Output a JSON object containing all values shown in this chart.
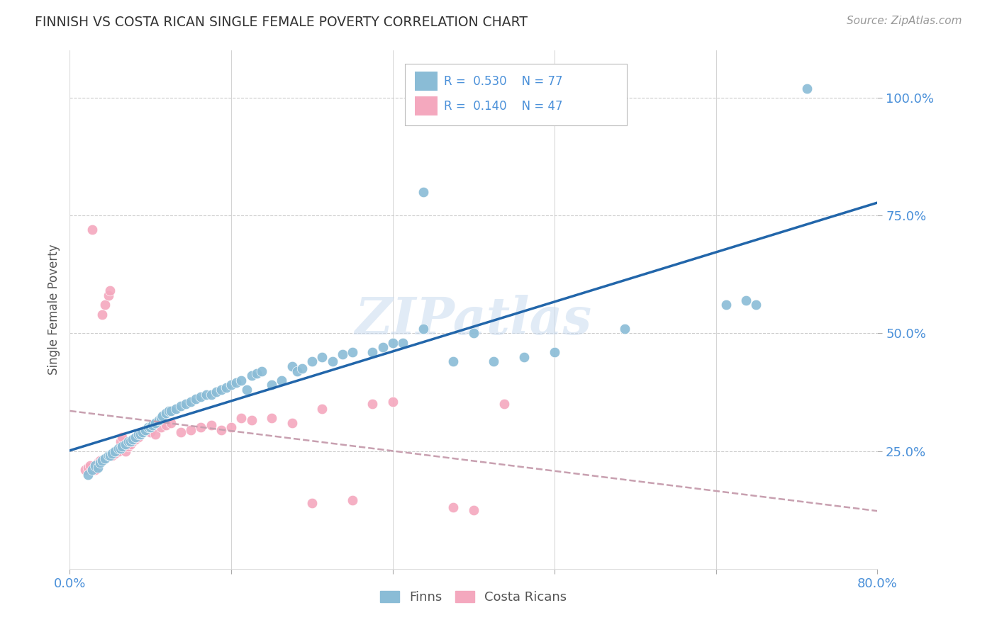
{
  "title": "FINNISH VS COSTA RICAN SINGLE FEMALE POVERTY CORRELATION CHART",
  "source": "Source: ZipAtlas.com",
  "ylabel": "Single Female Poverty",
  "xlim": [
    0.0,
    0.8
  ],
  "ylim": [
    0.0,
    1.1
  ],
  "watermark": "ZIPatlas",
  "blue_color": "#8abcd6",
  "pink_color": "#f4a8be",
  "blue_line_color": "#2266aa",
  "pink_line_color": "#d4a0b0",
  "grid_color": "#cccccc",
  "text_color": "#4a90d9",
  "title_color": "#333333",
  "source_color": "#999999",
  "ylabel_color": "#555555",
  "legend_text_color": "#4a90d9",
  "bottom_legend_color": "#555555",
  "finns_x": [
    0.018,
    0.022,
    0.025,
    0.028,
    0.03,
    0.032,
    0.035,
    0.038,
    0.04,
    0.042,
    0.045,
    0.048,
    0.05,
    0.052,
    0.055,
    0.058,
    0.06,
    0.062,
    0.065,
    0.068,
    0.07,
    0.072,
    0.075,
    0.078,
    0.08,
    0.082,
    0.085,
    0.088,
    0.09,
    0.092,
    0.095,
    0.098,
    0.1,
    0.105,
    0.11,
    0.115,
    0.12,
    0.125,
    0.13,
    0.135,
    0.14,
    0.145,
    0.15,
    0.155,
    0.16,
    0.165,
    0.17,
    0.175,
    0.18,
    0.185,
    0.19,
    0.2,
    0.21,
    0.22,
    0.225,
    0.23,
    0.24,
    0.25,
    0.26,
    0.27,
    0.28,
    0.3,
    0.31,
    0.32,
    0.33,
    0.35,
    0.38,
    0.4,
    0.42,
    0.45,
    0.48,
    0.55,
    0.65,
    0.67,
    0.68,
    0.73,
    0.35
  ],
  "finns_y": [
    0.2,
    0.21,
    0.22,
    0.215,
    0.225,
    0.23,
    0.235,
    0.24,
    0.24,
    0.245,
    0.25,
    0.255,
    0.255,
    0.26,
    0.265,
    0.27,
    0.27,
    0.275,
    0.28,
    0.285,
    0.285,
    0.29,
    0.295,
    0.3,
    0.3,
    0.305,
    0.31,
    0.315,
    0.32,
    0.325,
    0.33,
    0.335,
    0.335,
    0.34,
    0.345,
    0.35,
    0.355,
    0.36,
    0.365,
    0.37,
    0.37,
    0.375,
    0.38,
    0.385,
    0.39,
    0.395,
    0.4,
    0.38,
    0.41,
    0.415,
    0.42,
    0.39,
    0.4,
    0.43,
    0.42,
    0.425,
    0.44,
    0.45,
    0.44,
    0.455,
    0.46,
    0.46,
    0.47,
    0.48,
    0.48,
    0.51,
    0.44,
    0.5,
    0.44,
    0.45,
    0.46,
    0.51,
    0.56,
    0.57,
    0.56,
    1.02,
    0.8
  ],
  "costa_ricans_x": [
    0.015,
    0.018,
    0.02,
    0.022,
    0.025,
    0.028,
    0.03,
    0.032,
    0.035,
    0.038,
    0.04,
    0.042,
    0.045,
    0.048,
    0.05,
    0.052,
    0.055,
    0.058,
    0.06,
    0.062,
    0.065,
    0.068,
    0.07,
    0.075,
    0.08,
    0.085,
    0.09,
    0.095,
    0.1,
    0.11,
    0.12,
    0.13,
    0.14,
    0.15,
    0.16,
    0.17,
    0.18,
    0.2,
    0.22,
    0.24,
    0.25,
    0.28,
    0.3,
    0.32,
    0.38,
    0.4,
    0.43
  ],
  "costa_ricans_y": [
    0.21,
    0.215,
    0.22,
    0.72,
    0.21,
    0.225,
    0.23,
    0.54,
    0.56,
    0.58,
    0.59,
    0.24,
    0.245,
    0.25,
    0.27,
    0.28,
    0.25,
    0.26,
    0.265,
    0.27,
    0.275,
    0.28,
    0.29,
    0.295,
    0.29,
    0.285,
    0.3,
    0.305,
    0.31,
    0.29,
    0.295,
    0.3,
    0.305,
    0.295,
    0.3,
    0.32,
    0.315,
    0.32,
    0.31,
    0.14,
    0.34,
    0.145,
    0.35,
    0.355,
    0.13,
    0.125,
    0.35
  ]
}
